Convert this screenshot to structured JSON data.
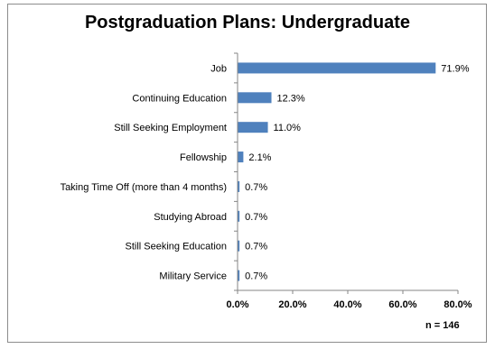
{
  "chart_data": {
    "type": "bar",
    "orientation": "horizontal",
    "title": "Postgraduation Plans: Undergraduate",
    "categories": [
      "Job",
      "Continuing Education",
      "Still Seeking Employment",
      "Fellowship",
      "Taking Time Off (more than 4 months)",
      "Studying Abroad",
      "Still Seeking Education",
      "Military Service"
    ],
    "values": [
      71.9,
      12.3,
      11.0,
      2.1,
      0.7,
      0.7,
      0.7,
      0.7
    ],
    "data_labels": [
      "71.9%",
      "12.3%",
      "11.0%",
      "2.1%",
      "0.7%",
      "0.7%",
      "0.7%",
      "0.7%"
    ],
    "xlim": [
      0,
      80
    ],
    "xticks": [
      "0.0%",
      "20.0%",
      "40.0%",
      "60.0%",
      "80.0%"
    ],
    "xlabel": "",
    "ylabel": "",
    "grid": false,
    "legend": "none",
    "bar_color": "#4f81bd",
    "note": "n = 146"
  }
}
